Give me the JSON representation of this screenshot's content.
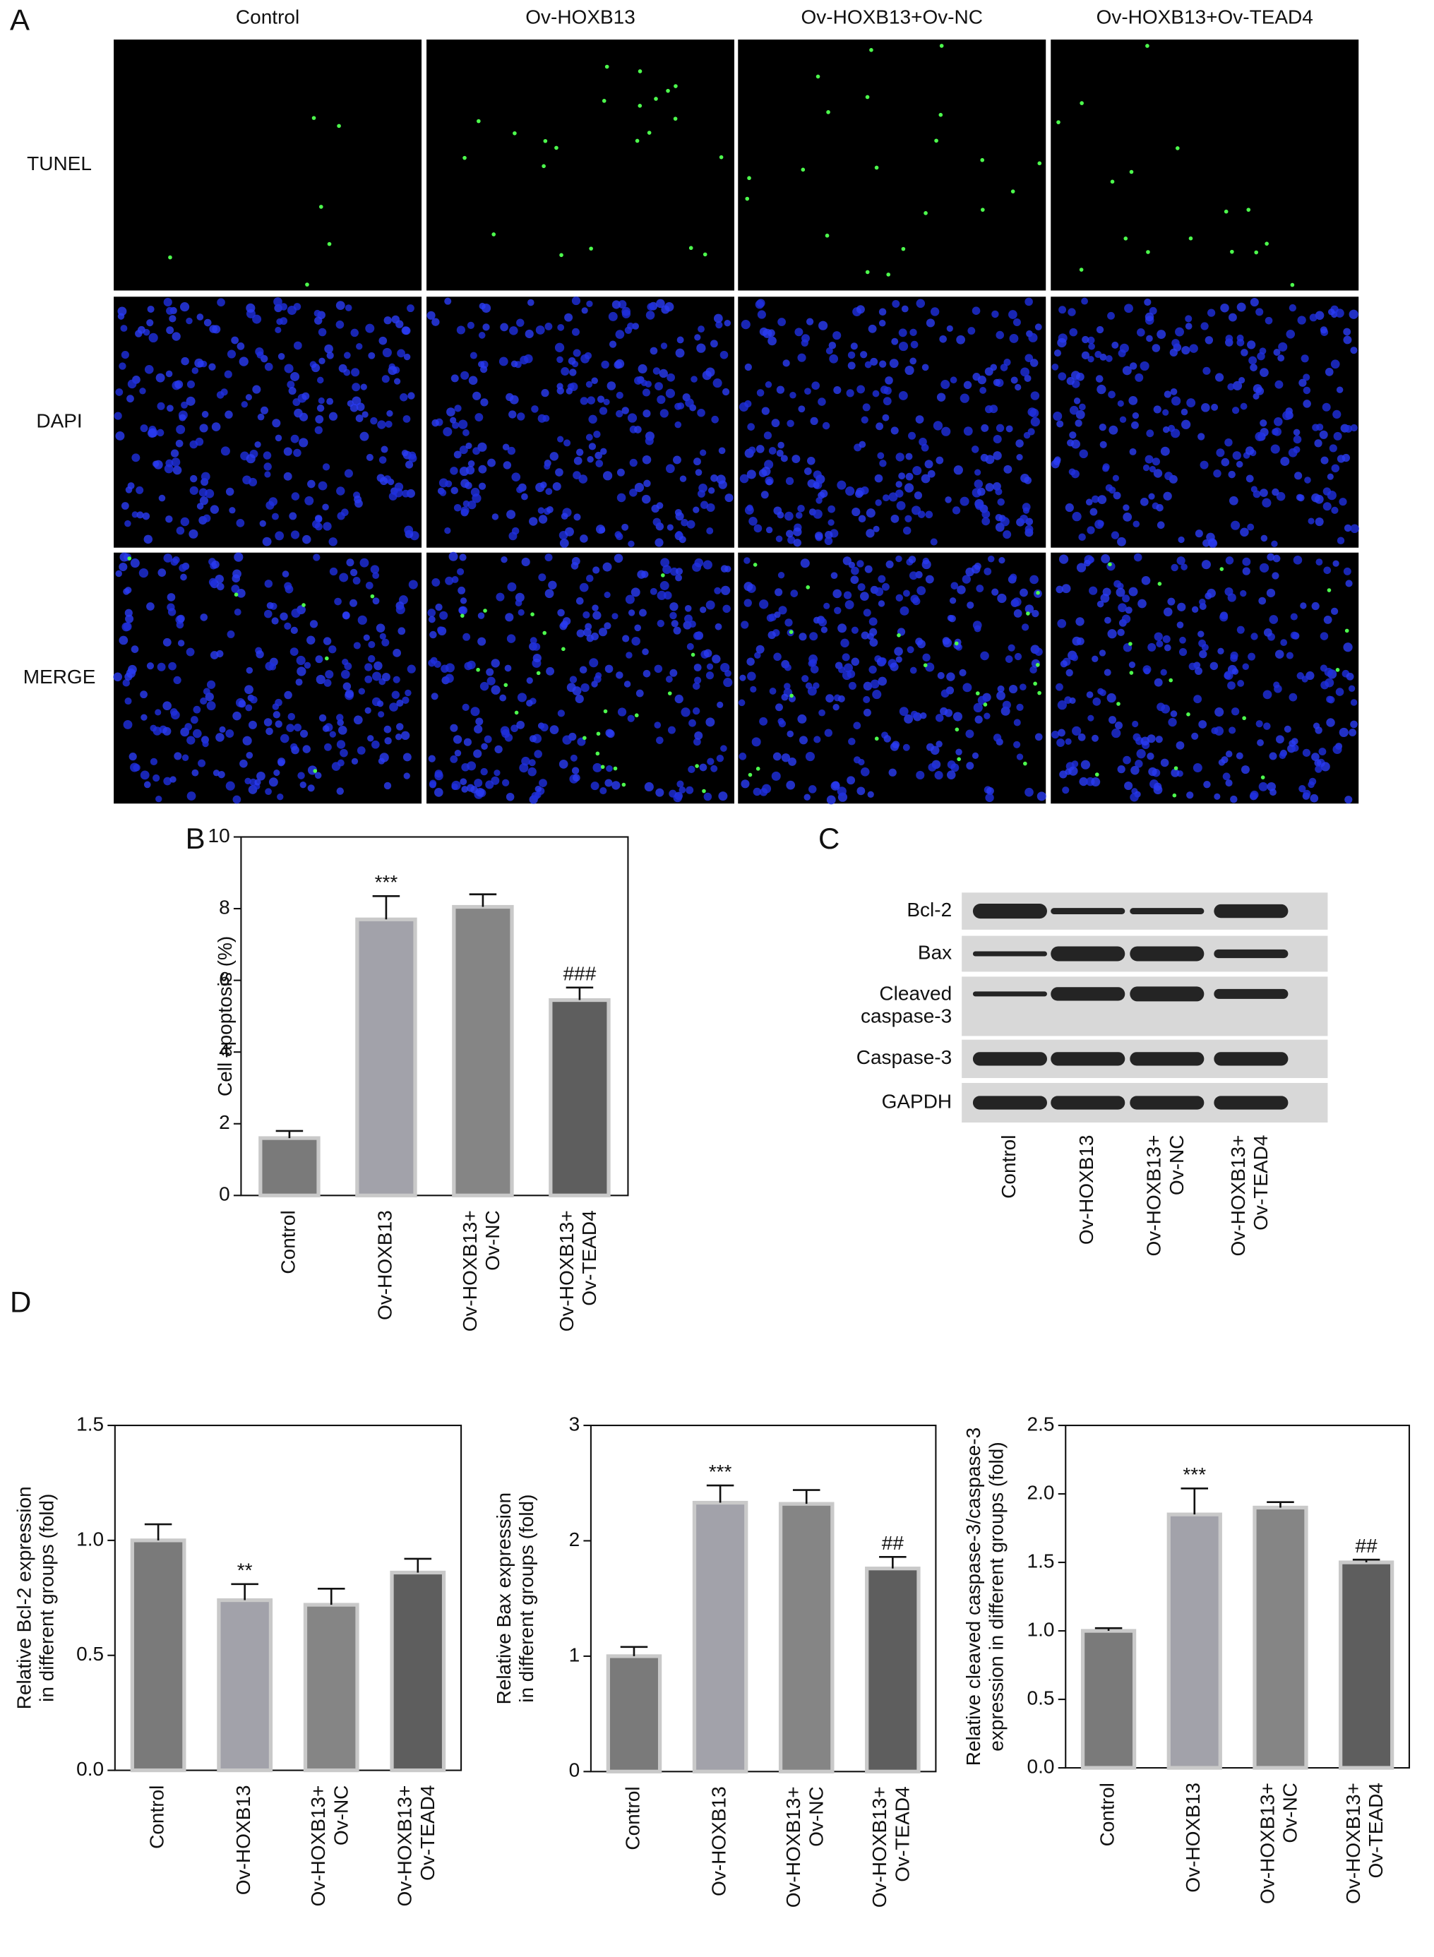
{
  "panel_labels": [
    "A",
    "B",
    "C",
    "D"
  ],
  "panel_a": {
    "columns": [
      "Control",
      "Ov-HOXB13",
      "Ov-HOXB13+Ov-NC",
      "Ov-HOXB13+Ov-TEAD4"
    ],
    "rows": [
      "TUNEL",
      "DAPI",
      "MERGE"
    ]
  },
  "panel_c": {
    "bands": [
      "Bcl-2",
      "Bax",
      "Cleaved\ncaspase-3",
      "Caspase-3",
      "GAPDH"
    ],
    "lanes": [
      "Control",
      "Ov-HOXB13",
      "Ov-HOXB13+\nOv-NC",
      "Ov-HOXB13+\nOv-TEAD4"
    ]
  },
  "chart_data": [
    {
      "type": "bar",
      "y_label": "Cell apoptosis (%)",
      "categories": [
        "Control",
        "Ov-HOXB13",
        "Ov-HOXB13+\nOv-NC",
        "Ov-HOXB13+\nOv-TEAD4"
      ],
      "values": [
        1.6,
        7.7,
        8.05,
        5.45
      ],
      "errors": [
        0.2,
        0.65,
        0.35,
        0.35
      ],
      "colors": [
        "#7a7a7a",
        "#a2a2aa",
        "#858585",
        "#5e5e5e"
      ],
      "edgecolor": "#c9c9c9",
      "ylim": [
        0,
        10
      ],
      "yticks": [
        0,
        2,
        4,
        6,
        8,
        10
      ],
      "annotations": [
        {
          "category": "Ov-HOXB13",
          "text": "***"
        },
        {
          "category": "Ov-HOXB13+\nOv-TEAD4",
          "text": "###"
        }
      ]
    },
    {
      "type": "bar",
      "y_label": "Relative Bcl-2 expression\nin different groups (fold)",
      "categories": [
        "Control",
        "Ov-HOXB13",
        "Ov-HOXB13+\nOv-NC",
        "Ov-HOXB13+\nOv-TEAD4"
      ],
      "values": [
        1.0,
        0.74,
        0.72,
        0.86
      ],
      "errors": [
        0.07,
        0.07,
        0.07,
        0.06
      ],
      "colors": [
        "#7a7a7a",
        "#a2a2aa",
        "#858585",
        "#5e5e5e"
      ],
      "edgecolor": "#c9c9c9",
      "ylim": [
        0,
        1.5
      ],
      "yticks": [
        {
          "value": 0,
          "label": "0.0"
        },
        0.5,
        {
          "value": 1,
          "label": "1.0"
        },
        1.5
      ],
      "annotations": [
        {
          "category": "Ov-HOXB13",
          "text": "**"
        }
      ]
    },
    {
      "type": "bar",
      "y_label": "Relative Bax expression\nin different groups (fold)",
      "categories": [
        "Control",
        "Ov-HOXB13",
        "Ov-HOXB13+\nOv-NC",
        "Ov-HOXB13+\nOv-TEAD4"
      ],
      "values": [
        1.0,
        2.33,
        2.32,
        1.76
      ],
      "errors": [
        0.08,
        0.15,
        0.12,
        0.1
      ],
      "colors": [
        "#7a7a7a",
        "#a2a2aa",
        "#858585",
        "#5e5e5e"
      ],
      "edgecolor": "#c9c9c9",
      "ylim": [
        0,
        3
      ],
      "yticks": [
        0,
        1,
        2,
        3
      ],
      "annotations": [
        {
          "category": "Ov-HOXB13",
          "text": "***"
        },
        {
          "category": "Ov-HOXB13+\nOv-TEAD4",
          "text": "##"
        }
      ]
    },
    {
      "type": "bar",
      "y_label": "Relative cleaved caspase-3/caspase-3\nexpression in different groups (fold)",
      "categories": [
        "Control",
        "Ov-HOXB13",
        "Ov-HOXB13+\nOv-NC",
        "Ov-HOXB13+\nOv-TEAD4"
      ],
      "values": [
        1.0,
        1.85,
        1.9,
        1.5
      ],
      "errors": [
        0.02,
        0.19,
        0.04,
        0.02
      ],
      "colors": [
        "#7a7a7a",
        "#a2a2aa",
        "#858585",
        "#5e5e5e"
      ],
      "edgecolor": "#c9c9c9",
      "ylim": [
        0,
        2.5
      ],
      "yticks": [
        {
          "value": 0,
          "label": "0.0"
        },
        0.5,
        {
          "value": 1,
          "label": "1.0"
        },
        1.5,
        {
          "value": 2,
          "label": "2.0"
        },
        2.5
      ],
      "annotations": [
        {
          "category": "Ov-HOXB13",
          "text": "***"
        },
        {
          "category": "Ov-HOXB13+\nOv-TEAD4",
          "text": "##"
        }
      ]
    }
  ]
}
